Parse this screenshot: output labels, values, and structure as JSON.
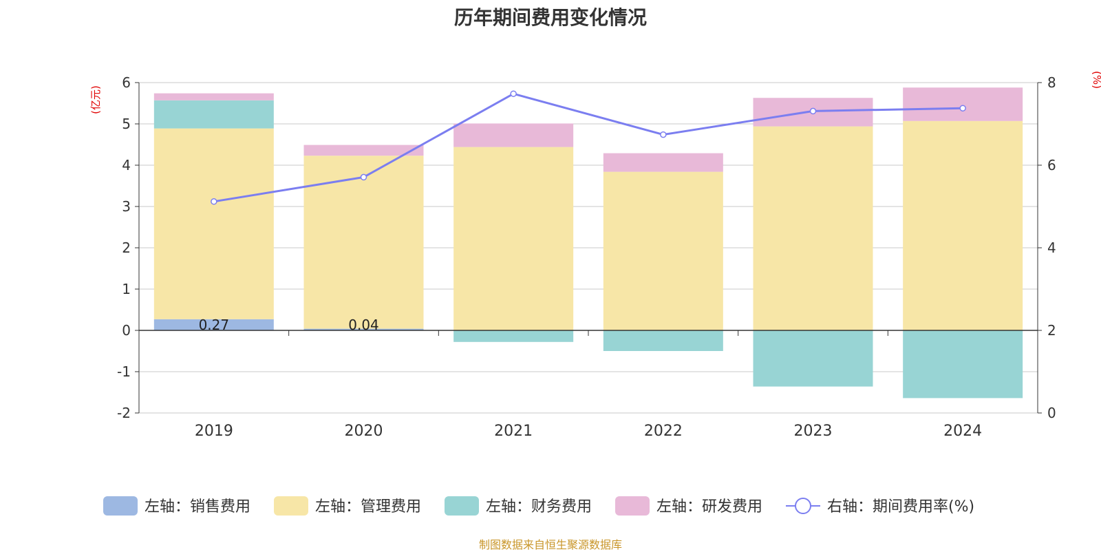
{
  "chart_data": {
    "type": "bar",
    "title": "历年期间费用变化情况",
    "categories": [
      "2019",
      "2020",
      "2021",
      "2022",
      "2023",
      "2024"
    ],
    "left_axis": {
      "label": "(亿元)",
      "ylim": [
        -2,
        6
      ],
      "ticks": [
        -2,
        -1,
        0,
        1,
        2,
        3,
        4,
        5,
        6
      ]
    },
    "right_axis": {
      "label": "(%)",
      "ylim": [
        0,
        8
      ],
      "ticks": [
        0,
        2,
        4,
        6,
        8
      ]
    },
    "series": [
      {
        "name": "左轴：销售费用",
        "type": "bar",
        "stack": true,
        "axis": "left",
        "color": "#9db8e2",
        "values": [
          0.27,
          0.04,
          0.0,
          0.0,
          0.0,
          0.0
        ],
        "labels": [
          "0.27",
          "0.04",
          "",
          "",
          "",
          ""
        ]
      },
      {
        "name": "左轴：管理费用",
        "type": "bar",
        "stack": true,
        "axis": "left",
        "color": "#f7e6a7",
        "values": [
          4.62,
          4.19,
          4.44,
          3.84,
          4.94,
          5.07
        ]
      },
      {
        "name": "左轴：财务费用",
        "type": "bar",
        "stack": true,
        "axis": "left",
        "color": "#98d4d4",
        "values": [
          0.68,
          0.0,
          -0.28,
          -0.5,
          -1.36,
          -1.64
        ]
      },
      {
        "name": "左轴：研发费用",
        "type": "bar",
        "stack": true,
        "axis": "left",
        "color": "#e8b9d8",
        "values": [
          0.17,
          0.26,
          0.57,
          0.45,
          0.69,
          0.81
        ]
      },
      {
        "name": "右轴：期间费用率(%)",
        "type": "line",
        "axis": "right",
        "color": "#7b7ef0",
        "values": [
          5.12,
          5.71,
          7.73,
          6.74,
          7.31,
          7.38
        ]
      }
    ],
    "legend_position": "bottom",
    "grid": true
  },
  "source_note": "制图数据来自恒生聚源数据库"
}
